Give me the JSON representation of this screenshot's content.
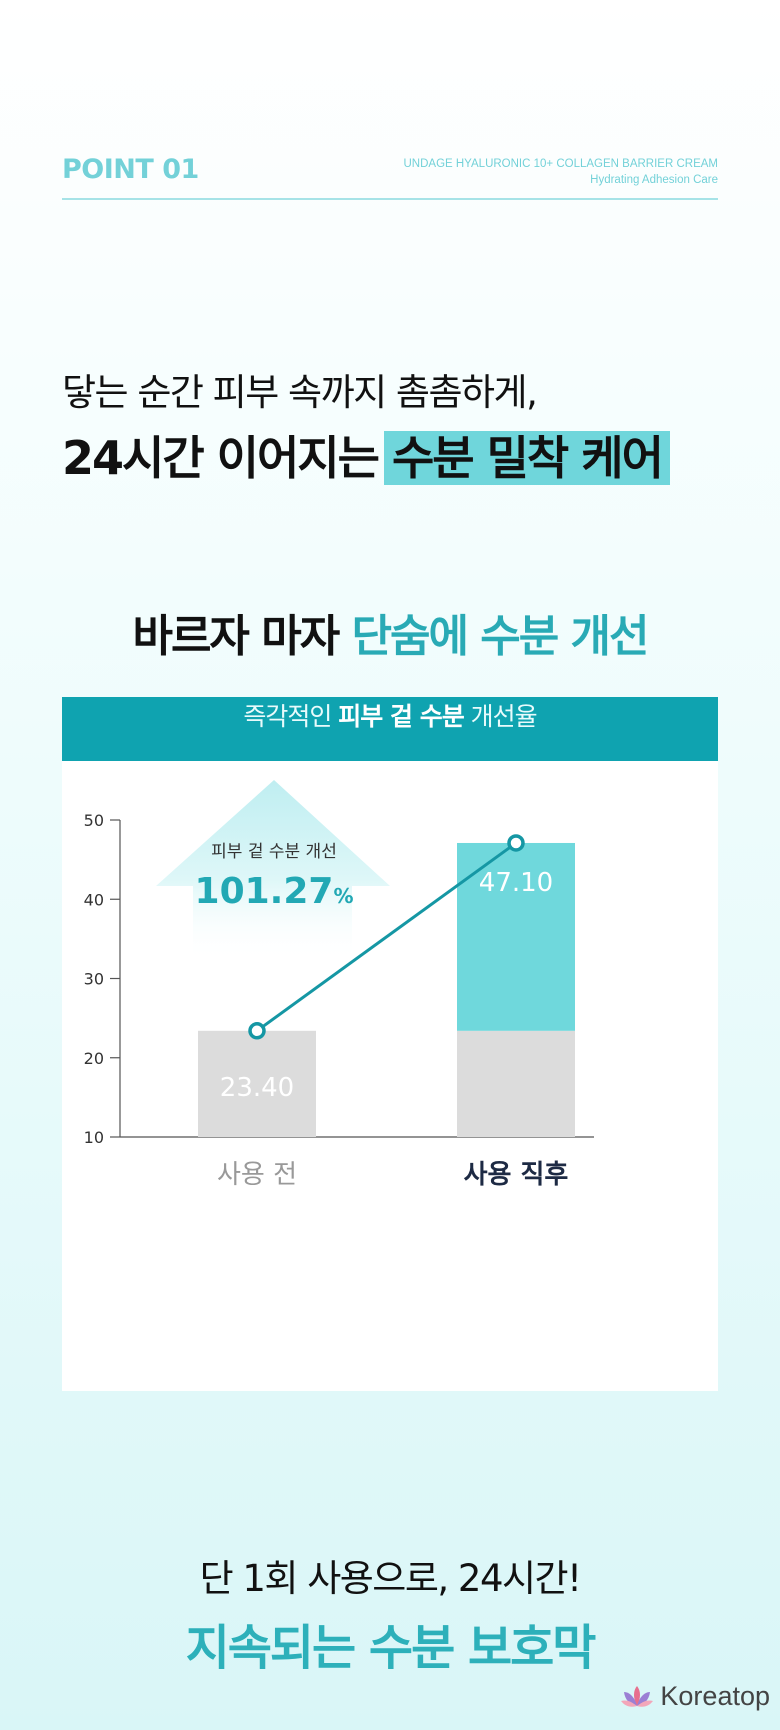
{
  "header": {
    "point_label": "POINT 01",
    "product_name": "UNDAGE HYALURONIC 10+ COLLAGEN BARRIER CREAM",
    "product_sub": "Hydrating Adhesion Care"
  },
  "headline": {
    "line1": "닿는 순간 피부 속까지 촘촘하게,",
    "line2_plain": "24시간 이어지는",
    "line2_highlight": "수분 밀착 케어"
  },
  "subhead": {
    "plain": "바르자 마자",
    "teal": "단숨에 수분 개선"
  },
  "chart_title": {
    "pre": "즉각적인",
    "bold": "피부 겉 수분",
    "post": "개선율"
  },
  "callout": {
    "label": "피부 겉 수분 개선",
    "value": "101.27",
    "unit": "%"
  },
  "colors": {
    "accent": "#29aab5",
    "before_bar": "#dcdcdc",
    "after_increase": "#6fd8dc",
    "line": "#1597a4",
    "title_bar": "#0fa3b0"
  },
  "chart_data": {
    "type": "bar",
    "categories": [
      "사용 전",
      "사용 직후"
    ],
    "values": [
      23.4,
      47.1
    ],
    "value_labels": [
      "23.40",
      "47.10"
    ],
    "overlay": "line connecting bar tops",
    "ylim": [
      10,
      50
    ],
    "yticks": [
      10,
      20,
      30,
      40,
      50
    ],
    "grid": false,
    "xlabel": "",
    "ylabel": ""
  },
  "closing": {
    "line1": "단 1회 사용으로, 24시간!",
    "line2": "지속되는 수분 보호막"
  },
  "watermark": {
    "text": "Koreatop",
    "icon": "lotus-icon"
  }
}
